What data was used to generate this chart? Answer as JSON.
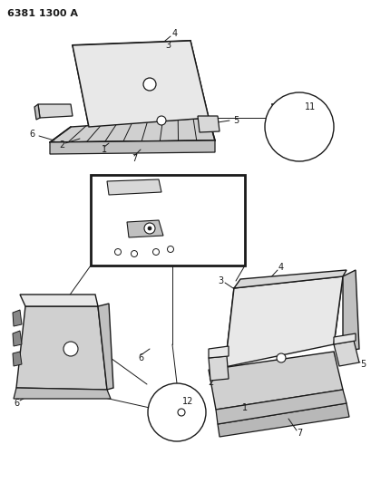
{
  "title": "6381 1300 A",
  "bg": "#ffffff",
  "lc": "#1a1a1a",
  "fig_w": 4.1,
  "fig_h": 5.33,
  "dpi": 100,
  "seat_fill": "#e8e8e8",
  "seat_fill2": "#d0d0d0",
  "seat_fill3": "#c0c0c0",
  "arm_fill": "#d8d8d8",
  "box_fill": "#ffffff"
}
